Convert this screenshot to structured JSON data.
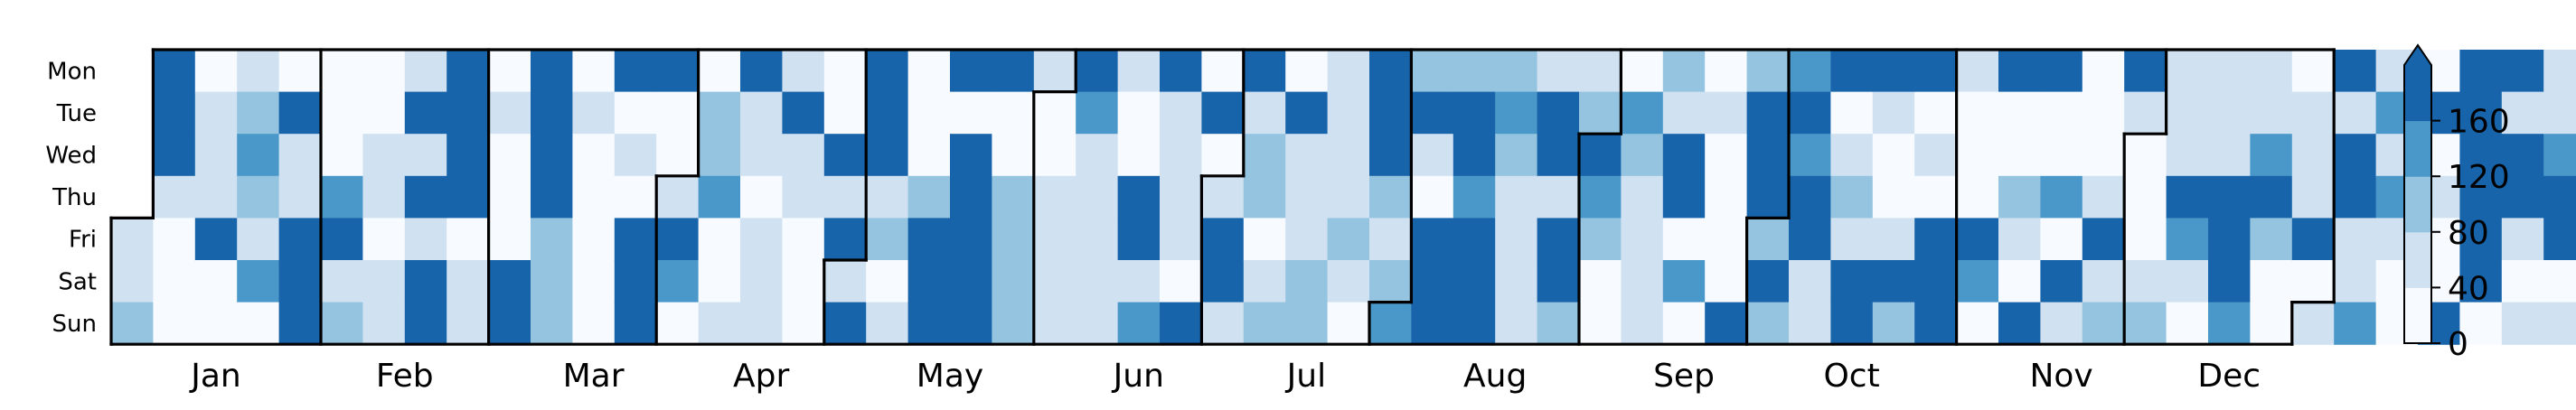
{
  "chart_data": {
    "type": "heatmap",
    "title": "",
    "xlabel": "",
    "ylabel": "",
    "day_labels": [
      "Mon",
      "Tue",
      "Wed",
      "Thu",
      "Fri",
      "Sat",
      "Sun"
    ],
    "month_labels": [
      "Jan",
      "Feb",
      "Mar",
      "Apr",
      "May",
      "Jun",
      "Jul",
      "Aug",
      "Sep",
      "Oct",
      "Nov",
      "Dec"
    ],
    "colorbar": {
      "ticks": [
        0,
        40,
        80,
        120,
        160
      ],
      "extend": "max",
      "bins": [
        0,
        40,
        80,
        120,
        160,
        200
      ],
      "colors": [
        "#f7fbff",
        "#d0e1f2",
        "#94c4df",
        "#4a98c9",
        "#1864aa"
      ]
    },
    "grid": false,
    "start_weekday": "Fri",
    "level_values": [
      20,
      60,
      100,
      140,
      180
    ],
    "daily_levels": [
      1,
      1,
      2,
      4,
      4,
      4,
      1,
      0,
      0,
      0,
      0,
      1,
      1,
      1,
      4,
      0,
      0,
      1,
      2,
      3,
      2,
      1,
      3,
      0,
      0,
      4,
      1,
      1,
      4,
      4,
      4,
      0,
      0,
      0,
      3,
      4,
      1,
      2,
      0,
      0,
      1,
      1,
      0,
      1,
      1,
      1,
      4,
      1,
      4,
      1,
      4,
      4,
      4,
      4,
      4,
      4,
      0,
      1,
      1,
      0,
      1,
      0,
      0,
      0,
      4,
      4,
      4,
      4,
      4,
      4,
      2,
      2,
      2,
      0,
      1,
      0,
      0,
      0,
      0,
      0,
      4,
      0,
      1,
      0,
      4,
      4,
      4,
      4,
      0,
      0,
      1,
      4,
      3,
      0,
      0,
      2,
      2,
      3,
      0,
      0,
      1,
      4,
      1,
      1,
      0,
      1,
      1,
      1,
      1,
      4,
      1,
      1,
      0,
      0,
      0,
      0,
      0,
      4,
      1,
      4,
      1,
      4,
      4,
      4,
      4,
      1,
      2,
      0,
      1,
      0,
      0,
      0,
      2,
      4,
      4,
      4,
      4,
      0,
      4,
      4,
      4,
      4,
      4,
      4,
      0,
      0,
      2,
      2,
      2,
      2,
      1,
      0,
      0,
      1,
      1,
      1,
      1,
      4,
      3,
      1,
      1,
      1,
      1,
      1,
      1,
      0,
      0,
      4,
      4,
      1,
      3,
      4,
      1,
      1,
      1,
      1,
      0,
      4,
      0,
      4,
      0,
      1,
      4,
      4,
      1,
      4,
      1,
      2,
      2,
      0,
      1,
      2,
      0,
      4,
      1,
      1,
      1,
      2,
      2,
      1,
      1,
      1,
      1,
      2,
      1,
      0,
      4,
      4,
      4,
      2,
      1,
      2,
      3,
      2,
      4,
      1,
      0,
      4,
      4,
      4,
      2,
      4,
      4,
      3,
      4,
      4,
      4,
      2,
      3,
      2,
      1,
      1,
      1,
      1,
      1,
      4,
      4,
      1,
      4,
      4,
      2,
      1,
      2,
      4,
      3,
      2,
      0,
      0,
      0,
      3,
      2,
      1,
      1,
      1,
      1,
      2,
      1,
      4,
      4,
      0,
      3,
      0,
      0,
      1,
      0,
      0,
      0,
      0,
      4,
      2,
      4,
      4,
      4,
      2,
      4,
      2,
      3,
      4,
      3,
      4,
      4,
      1,
      1,
      4,
      0,
      1,
      2,
      1,
      4,
      4,
      4,
      1,
      0,
      0,
      1,
      4,
      2,
      4,
      0,
      1,
      0,
      4,
      4,
      4,
      1,
      0,
      0,
      0,
      4,
      3,
      0,
      4,
      0,
      0,
      2,
      1,
      0,
      4,
      4,
      0,
      0,
      3,
      0,
      4,
      1,
      0,
      0,
      0,
      1,
      4,
      1,
      2,
      4,
      1,
      0,
      0,
      0,
      1,
      2,
      1,
      1,
      1,
      4,
      3,
      1,
      0,
      1,
      1,
      1,
      4,
      4,
      4,
      3,
      1,
      1,
      3,
      4,
      2,
      0,
      0,
      0,
      1,
      1,
      1,
      4,
      0,
      1,
      4,
      1,
      4,
      4,
      1,
      1,
      3,
      1,
      3,
      1,
      3,
      1,
      0,
      0,
      0,
      4,
      0,
      1,
      0,
      0,
      4,
      4,
      4,
      4,
      4,
      4,
      4,
      0,
      4,
      1,
      4,
      4,
      1,
      0,
      1,
      1,
      1,
      3,
      4,
      4,
      0,
      1,
      1,
      1,
      4,
      4,
      0,
      1,
      0,
      1,
      4,
      4,
      4,
      0,
      0,
      3,
      3,
      3,
      0,
      1,
      4,
      0,
      0,
      4,
      4,
      4,
      4,
      4,
      4,
      0,
      0,
      4,
      4,
      4,
      1,
      4,
      3,
      4,
      1,
      0,
      4,
      0,
      0,
      1,
      2,
      4,
      3,
      4,
      2,
      0,
      0,
      4,
      4,
      4,
      4,
      2,
      1,
      0,
      0,
      1,
      0,
      0,
      4,
      1,
      1,
      0,
      1,
      4,
      0,
      4,
      4,
      4,
      4,
      4,
      4,
      1,
      0,
      4,
      4,
      0,
      0,
      0,
      0,
      0,
      4,
      0,
      0,
      0,
      1,
      0,
      0,
      0,
      0,
      4,
      4,
      4,
      1,
      1,
      0,
      0,
      4,
      4,
      4,
      1,
      3,
      0,
      1,
      0,
      0,
      1,
      4,
      4,
      0,
      0,
      0,
      1,
      0,
      3,
      0,
      0,
      1,
      1,
      0,
      0,
      4,
      4,
      1,
      0,
      0,
      1,
      0,
      0,
      0,
      0,
      0,
      0,
      4,
      4,
      4,
      4,
      4,
      4,
      0,
      4,
      4,
      4,
      3,
      0,
      1,
      1,
      4,
      1,
      4,
      1,
      1,
      1,
      1,
      0,
      1,
      1,
      2,
      1,
      3,
      0,
      1,
      0,
      3,
      1,
      1,
      1,
      1,
      0,
      1,
      1,
      1,
      2,
      1,
      1,
      2,
      0,
      0,
      0,
      1
    ]
  }
}
